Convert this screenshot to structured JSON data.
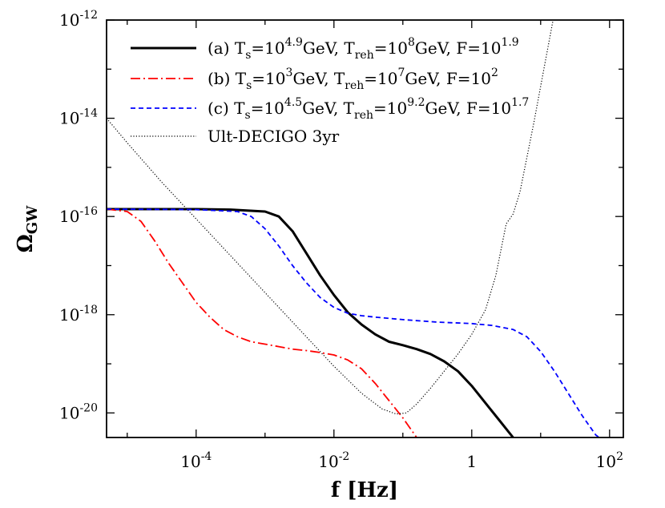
{
  "chart_data": {
    "type": "line",
    "xlabel": "f [Hz]",
    "ylabel": "Ω",
    "ylabel_sub": "GW",
    "xscale": "log",
    "yscale": "log",
    "xlim_log10": [
      -5.3,
      2.2
    ],
    "ylim_log10": [
      -20.5,
      -12.0
    ],
    "x_ticks": [
      {
        "log10": -4,
        "base": "10",
        "exp": "-4"
      },
      {
        "log10": -2,
        "base": "10",
        "exp": "-2"
      },
      {
        "log10": 0,
        "base": "1",
        "exp": ""
      },
      {
        "log10": 2,
        "base": "10",
        "exp": "2"
      }
    ],
    "y_ticks": [
      {
        "log10": -12,
        "base": "10",
        "exp": "-12"
      },
      {
        "log10": -14,
        "base": "10",
        "exp": "-14"
      },
      {
        "log10": -16,
        "base": "10",
        "exp": "-16"
      },
      {
        "log10": -18,
        "base": "10",
        "exp": "-18"
      },
      {
        "log10": -20,
        "base": "10",
        "exp": "-20"
      }
    ],
    "series": [
      {
        "name": "a",
        "color": "#000000",
        "style": "solid",
        "legend": [
          {
            "t": "(a) T"
          },
          {
            "t": "s",
            "sub": true
          },
          {
            "t": "=10"
          },
          {
            "t": "4.9",
            "sup": true
          },
          {
            "t": "GeV, T"
          },
          {
            "t": "reh",
            "sub": true
          },
          {
            "t": "=10"
          },
          {
            "t": "8",
            "sup": true
          },
          {
            "t": "GeV, F=10"
          },
          {
            "t": "1.9",
            "sup": true
          }
        ],
        "points": [
          [
            -5.3,
            -15.85
          ],
          [
            -4,
            -15.85
          ],
          [
            -3.5,
            -15.86
          ],
          [
            -3,
            -15.9
          ],
          [
            -2.8,
            -16.0
          ],
          [
            -2.6,
            -16.3
          ],
          [
            -2.4,
            -16.75
          ],
          [
            -2.2,
            -17.2
          ],
          [
            -2.0,
            -17.6
          ],
          [
            -1.8,
            -17.95
          ],
          [
            -1.6,
            -18.2
          ],
          [
            -1.4,
            -18.4
          ],
          [
            -1.2,
            -18.55
          ],
          [
            -1.0,
            -18.62
          ],
          [
            -0.8,
            -18.7
          ],
          [
            -0.6,
            -18.8
          ],
          [
            -0.4,
            -18.95
          ],
          [
            -0.2,
            -19.15
          ],
          [
            0.0,
            -19.45
          ],
          [
            0.2,
            -19.8
          ],
          [
            0.4,
            -20.15
          ],
          [
            0.6,
            -20.5
          ]
        ]
      },
      {
        "name": "b",
        "color": "#ff0000",
        "style": "dashdot",
        "legend": [
          {
            "t": "(b) T"
          },
          {
            "t": "s",
            "sub": true
          },
          {
            "t": "=10"
          },
          {
            "t": "3",
            "sup": true
          },
          {
            "t": "GeV, T"
          },
          {
            "t": "reh",
            "sub": true
          },
          {
            "t": "=10"
          },
          {
            "t": "7",
            "sup": true
          },
          {
            "t": "GeV, F=10"
          },
          {
            "t": "2",
            "sup": true
          }
        ],
        "points": [
          [
            -5.3,
            -15.85
          ],
          [
            -5.0,
            -15.9
          ],
          [
            -4.8,
            -16.1
          ],
          [
            -4.6,
            -16.5
          ],
          [
            -4.4,
            -16.95
          ],
          [
            -4.2,
            -17.35
          ],
          [
            -4.0,
            -17.75
          ],
          [
            -3.8,
            -18.05
          ],
          [
            -3.6,
            -18.3
          ],
          [
            -3.4,
            -18.45
          ],
          [
            -3.2,
            -18.55
          ],
          [
            -3.0,
            -18.6
          ],
          [
            -2.8,
            -18.65
          ],
          [
            -2.6,
            -18.7
          ],
          [
            -2.4,
            -18.73
          ],
          [
            -2.2,
            -18.77
          ],
          [
            -2.0,
            -18.82
          ],
          [
            -1.8,
            -18.92
          ],
          [
            -1.6,
            -19.1
          ],
          [
            -1.4,
            -19.4
          ],
          [
            -1.2,
            -19.75
          ],
          [
            -1.0,
            -20.1
          ],
          [
            -0.8,
            -20.5
          ]
        ]
      },
      {
        "name": "c",
        "color": "#0000ff",
        "style": "dashed",
        "legend": [
          {
            "t": "(c) T"
          },
          {
            "t": "s",
            "sub": true
          },
          {
            "t": "=10"
          },
          {
            "t": "4.5",
            "sup": true
          },
          {
            "t": "GeV, T"
          },
          {
            "t": "reh",
            "sub": true
          },
          {
            "t": "=10"
          },
          {
            "t": "9.2",
            "sup": true
          },
          {
            "t": "GeV, F=10"
          },
          {
            "t": "1.7",
            "sup": true
          }
        ],
        "points": [
          [
            -5.3,
            -15.85
          ],
          [
            -4,
            -15.86
          ],
          [
            -3.4,
            -15.9
          ],
          [
            -3.2,
            -16.0
          ],
          [
            -3.0,
            -16.25
          ],
          [
            -2.8,
            -16.6
          ],
          [
            -2.6,
            -17.0
          ],
          [
            -2.4,
            -17.35
          ],
          [
            -2.2,
            -17.65
          ],
          [
            -2.0,
            -17.85
          ],
          [
            -1.8,
            -17.97
          ],
          [
            -1.6,
            -18.02
          ],
          [
            -1.4,
            -18.05
          ],
          [
            -1.0,
            -18.1
          ],
          [
            -0.5,
            -18.15
          ],
          [
            0.0,
            -18.18
          ],
          [
            0.3,
            -18.22
          ],
          [
            0.6,
            -18.3
          ],
          [
            0.8,
            -18.45
          ],
          [
            1.0,
            -18.75
          ],
          [
            1.2,
            -19.15
          ],
          [
            1.4,
            -19.6
          ],
          [
            1.6,
            -20.05
          ],
          [
            1.8,
            -20.45
          ],
          [
            1.85,
            -20.5
          ]
        ]
      },
      {
        "name": "decigo",
        "color": "#000000",
        "style": "dotted",
        "legend": [
          {
            "t": "Ult-DECIGO 3yr"
          }
        ],
        "points": [
          [
            -5.3,
            -14.0
          ],
          [
            -5.0,
            -14.5
          ],
          [
            -4.5,
            -15.3
          ],
          [
            -4.0,
            -16.05
          ],
          [
            -3.5,
            -16.8
          ],
          [
            -3.0,
            -17.55
          ],
          [
            -2.5,
            -18.3
          ],
          [
            -2.0,
            -19.05
          ],
          [
            -1.6,
            -19.6
          ],
          [
            -1.3,
            -19.92
          ],
          [
            -1.1,
            -20.02
          ],
          [
            -0.95,
            -20.0
          ],
          [
            -0.8,
            -19.82
          ],
          [
            -0.6,
            -19.5
          ],
          [
            -0.4,
            -19.15
          ],
          [
            -0.2,
            -18.8
          ],
          [
            0.0,
            -18.4
          ],
          [
            0.2,
            -17.9
          ],
          [
            0.35,
            -17.2
          ],
          [
            0.45,
            -16.5
          ],
          [
            0.5,
            -16.15
          ],
          [
            0.6,
            -15.95
          ],
          [
            0.7,
            -15.5
          ],
          [
            0.8,
            -14.8
          ],
          [
            0.9,
            -14.1
          ],
          [
            1.0,
            -13.35
          ],
          [
            1.1,
            -12.6
          ],
          [
            1.18,
            -12.0
          ]
        ]
      }
    ]
  }
}
